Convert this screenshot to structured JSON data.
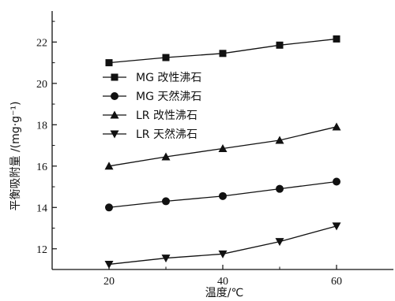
{
  "chart_data": {
    "type": "line",
    "xlabel": "温度/℃",
    "ylabel": "平衡吸附量 /(mg·g⁻¹)",
    "xlim": [
      10,
      70
    ],
    "ylim": [
      11,
      23.5
    ],
    "xticks": [
      20,
      40,
      60
    ],
    "yticks": [
      12,
      14,
      16,
      18,
      20,
      22
    ],
    "grid": false,
    "legend_position": "center-left",
    "x": [
      20,
      30,
      40,
      50,
      60
    ],
    "series": [
      {
        "name": "MG 改性沸石",
        "marker": "square",
        "values": [
          21.0,
          21.25,
          21.45,
          21.85,
          22.15
        ]
      },
      {
        "name": "MG 天然沸石",
        "marker": "circle",
        "values": [
          14.0,
          14.3,
          14.55,
          14.9,
          15.25
        ]
      },
      {
        "name": "LR 改性沸石",
        "marker": "triangle-up",
        "values": [
          16.0,
          16.45,
          16.85,
          17.25,
          17.9
        ]
      },
      {
        "name": "LR 天然沸石",
        "marker": "triangle-down",
        "values": [
          11.25,
          11.55,
          11.75,
          12.35,
          13.1
        ]
      }
    ]
  }
}
